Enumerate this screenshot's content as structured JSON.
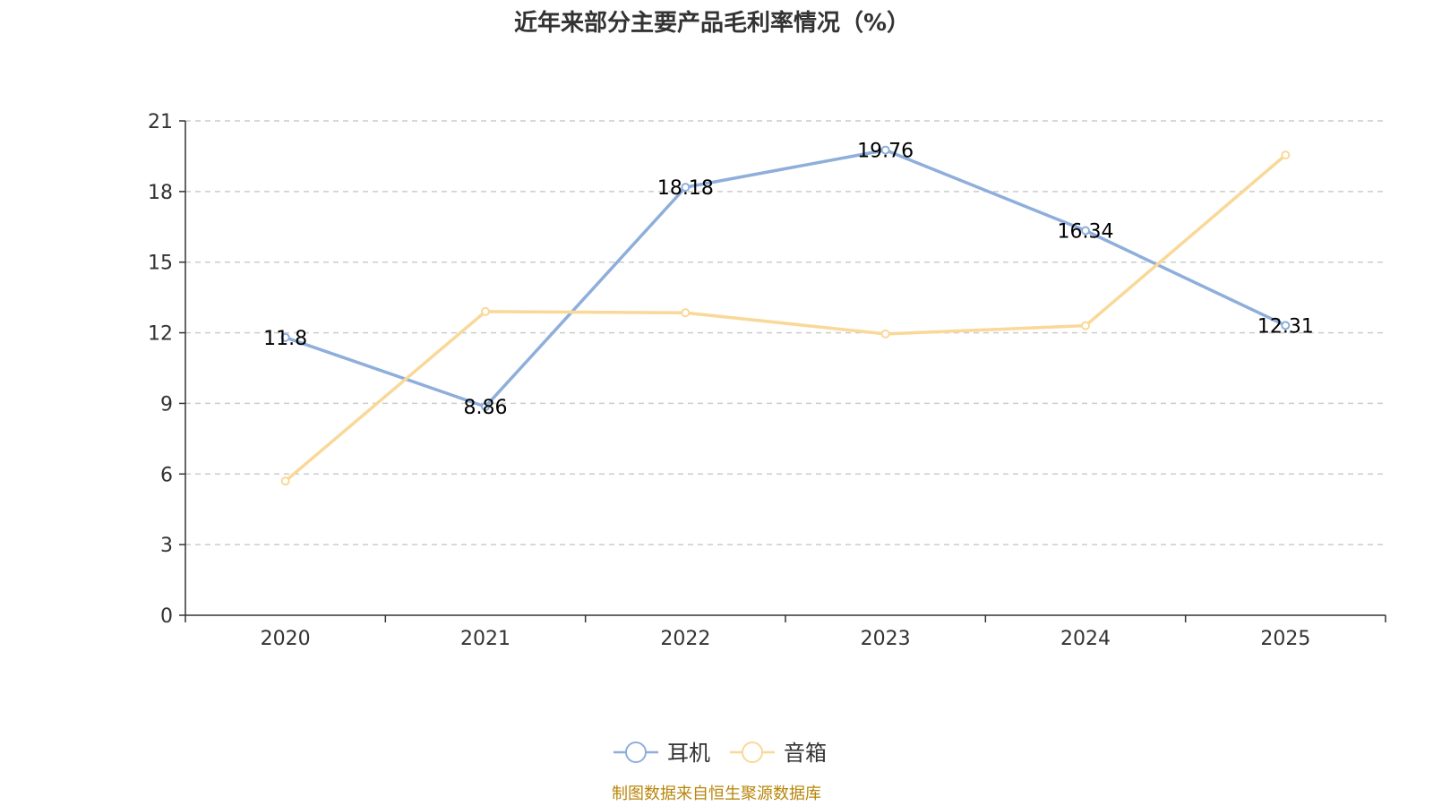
{
  "title": "近年来部分主要产品毛利率情况（%）",
  "source": "制图数据来自恒生聚源数据库",
  "chart_data": {
    "type": "line",
    "title": "近年来部分主要产品毛利率情况（%）",
    "categories": [
      "2020",
      "2021",
      "2022",
      "2023",
      "2024",
      "2025"
    ],
    "ylim": [
      0,
      21
    ],
    "yticks": [
      0,
      3,
      6,
      9,
      12,
      15,
      18,
      21
    ],
    "grid": true,
    "legend_position": "bottom-center",
    "series": [
      {
        "name": "耳机",
        "color": "#8eaedb",
        "values": [
          11.8,
          8.86,
          18.18,
          19.76,
          16.34,
          12.31
        ],
        "labels_shown": true
      },
      {
        "name": "音箱",
        "color": "#f9d898",
        "values": [
          5.7,
          12.9,
          12.85,
          11.95,
          12.3,
          19.55
        ],
        "labels_shown": false
      }
    ]
  }
}
